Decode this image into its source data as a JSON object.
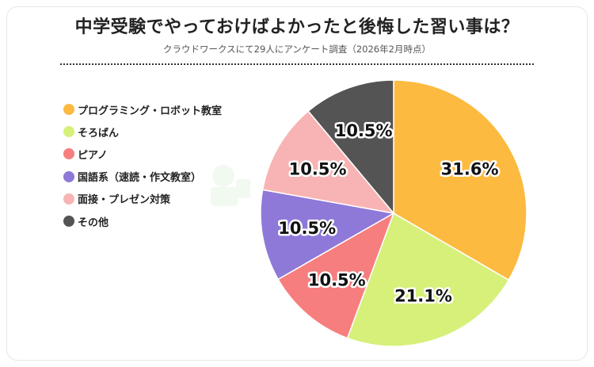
{
  "chart_data": {
    "type": "pie",
    "title": "中学受験でやっておけばよかったと後悔した習い事は？",
    "subtitle": "クラウドワークスにて29人にアンケート調査（2026年2月時点）",
    "legend_position": "left",
    "start_angle": "12 o'clock",
    "direction": "clockwise",
    "categories": [
      "プログラミング・ロボット教室",
      "そろばん",
      "ピアノ",
      "国語系（速読・作文教室）",
      "面接・プレゼン対策",
      "その他"
    ],
    "values": [
      31.6,
      21.1,
      10.5,
      10.5,
      10.5,
      10.5
    ],
    "data_labels": [
      "31.6%",
      "21.1%",
      "10.5%",
      "10.5%",
      "10.5%",
      "10.5%"
    ],
    "colors": [
      "#FDBA40",
      "#D6F07A",
      "#F77E7E",
      "#8E79D9",
      "#F8B4B4",
      "#545454"
    ]
  }
}
